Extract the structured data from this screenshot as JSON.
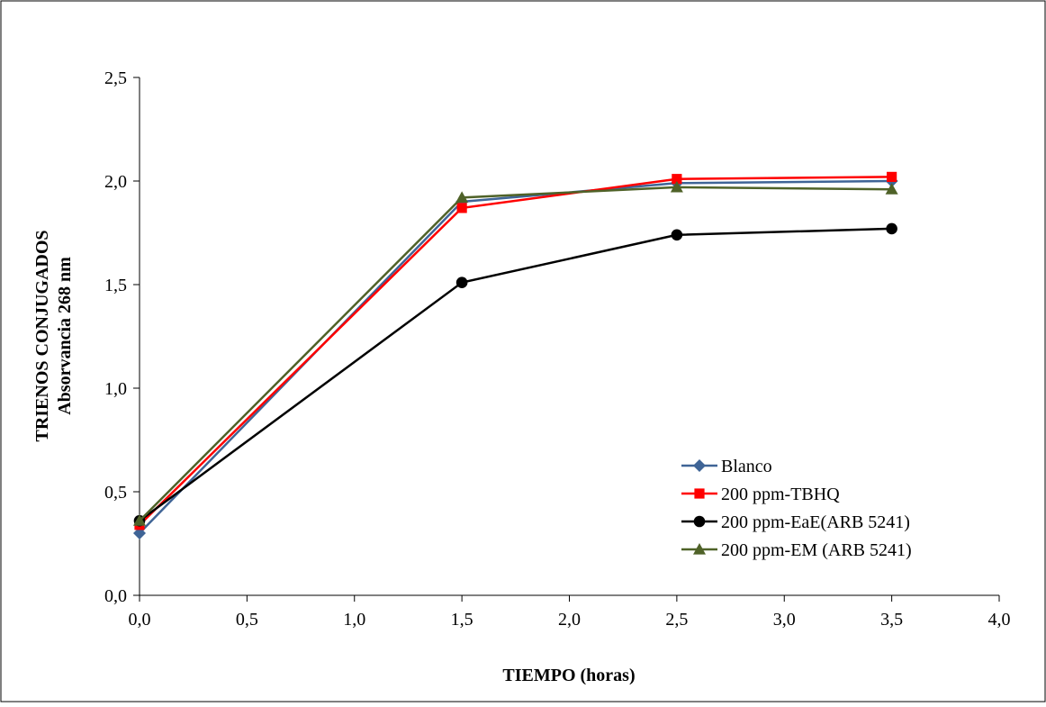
{
  "chart_data": {
    "type": "line",
    "title": "",
    "xlabel": "TIEMPO (horas)",
    "ylabel_line1": "TRIENOS  CONJUGADOS",
    "ylabel_line2": "Absorvancia 268 nm",
    "xlim": [
      0,
      4
    ],
    "ylim": [
      0,
      2.5
    ],
    "x_ticks": [
      {
        "value": 0.0,
        "label": "0,0"
      },
      {
        "value": 0.5,
        "label": "0,5"
      },
      {
        "value": 1.0,
        "label": "1,0"
      },
      {
        "value": 1.5,
        "label": "1,5"
      },
      {
        "value": 2.0,
        "label": "2,0"
      },
      {
        "value": 2.5,
        "label": "2,5"
      },
      {
        "value": 3.0,
        "label": "3,0"
      },
      {
        "value": 3.5,
        "label": "3,5"
      },
      {
        "value": 4.0,
        "label": "4,0"
      }
    ],
    "y_ticks": [
      {
        "value": 0.0,
        "label": "0,0"
      },
      {
        "value": 0.5,
        "label": "0,5"
      },
      {
        "value": 1.0,
        "label": "1,0"
      },
      {
        "value": 1.5,
        "label": "1,5"
      },
      {
        "value": 2.0,
        "label": "2,0"
      },
      {
        "value": 2.5,
        "label": "2,5"
      }
    ],
    "grid": false,
    "legend_position": "bottom-right",
    "x": [
      0.0,
      1.5,
      2.5,
      3.5
    ],
    "series": [
      {
        "name": "Blanco",
        "values": [
          0.3,
          1.9,
          1.99,
          2.0
        ],
        "color": "#3F6496",
        "marker": "diamond"
      },
      {
        "name": "200 ppm-TBHQ",
        "values": [
          0.34,
          1.87,
          2.01,
          2.02
        ],
        "color": "#FF0000",
        "marker": "square"
      },
      {
        "name": "200 ppm-EaE(ARB 5241)",
        "values": [
          0.36,
          1.51,
          1.74,
          1.77
        ],
        "color": "#000000",
        "marker": "circle"
      },
      {
        "name": "200 ppm-EM (ARB 5241)",
        "values": [
          0.36,
          1.92,
          1.97,
          1.96
        ],
        "color": "#4F6228",
        "marker": "triangle"
      }
    ]
  }
}
